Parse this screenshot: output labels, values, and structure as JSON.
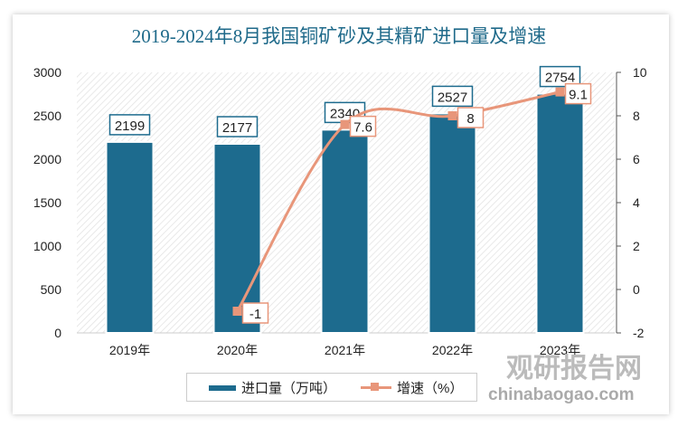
{
  "chart_data": {
    "type": "bar+line",
    "title": "2019-2024年8月我国铜矿砂及其精矿进口量及增速",
    "categories": [
      "2019年",
      "2020年",
      "2021年",
      "2022年",
      "2023年"
    ],
    "series": [
      {
        "name": "进口量（万吨）",
        "type": "bar",
        "axis": "left",
        "values": [
          2199,
          2177,
          2340,
          2527,
          2754
        ],
        "color": "#1d6b8e"
      },
      {
        "name": "增速（%）",
        "type": "line",
        "axis": "right",
        "values": [
          null,
          -1,
          7.6,
          8,
          9.1
        ],
        "color": "#e8967a"
      }
    ],
    "y_left": {
      "min": 0,
      "max": 3000,
      "ticks": [
        0,
        500,
        1000,
        1500,
        2000,
        2500,
        3000
      ]
    },
    "y_right": {
      "min": -2,
      "max": 10,
      "ticks": [
        -2,
        0,
        2,
        4,
        6,
        8,
        10
      ]
    },
    "legend": "bottom"
  },
  "watermark": {
    "name": "观研报告网",
    "url": "chinabaogao.com"
  }
}
